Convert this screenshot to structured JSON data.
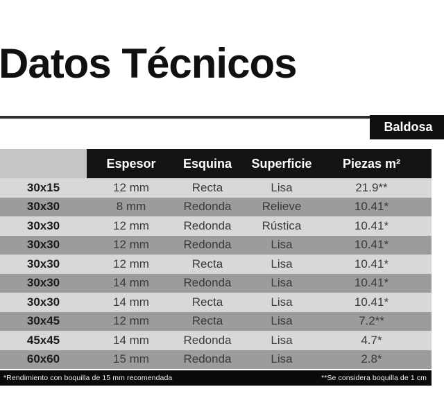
{
  "page": {
    "title": "Datos Técnicos",
    "category_badge": "Baldosa"
  },
  "table": {
    "columns": [
      "Espesor",
      "Esquina",
      "Superficie",
      "Piezas m²"
    ],
    "rows": [
      {
        "size": "30x15",
        "espesor": "12 mm",
        "esquina": "Recta",
        "superficie": "Lisa",
        "piezas": "21.9**"
      },
      {
        "size": "30x30",
        "espesor": "8 mm",
        "esquina": "Redonda",
        "superficie": "Relieve",
        "piezas": "10.41*"
      },
      {
        "size": "30x30",
        "espesor": "12 mm",
        "esquina": "Redonda",
        "superficie": "Rústica",
        "piezas": "10.41*"
      },
      {
        "size": "30x30",
        "espesor": "12 mm",
        "esquina": "Redonda",
        "superficie": "Lisa",
        "piezas": "10.41*"
      },
      {
        "size": "30x30",
        "espesor": "12 mm",
        "esquina": "Recta",
        "superficie": "Lisa",
        "piezas": "10.41*"
      },
      {
        "size": "30x30",
        "espesor": "14 mm",
        "esquina": "Redonda",
        "superficie": "Lisa",
        "piezas": "10.41*"
      },
      {
        "size": "30x30",
        "espesor": "14 mm",
        "esquina": "Recta",
        "superficie": "Lisa",
        "piezas": "10.41*"
      },
      {
        "size": "30x45",
        "espesor": "12 mm",
        "esquina": "Recta",
        "superficie": "Lisa",
        "piezas": "7.2**"
      },
      {
        "size": "45x45",
        "espesor": "14 mm",
        "esquina": "Redonda",
        "superficie": "Lisa",
        "piezas": "4.7*"
      },
      {
        "size": "60x60",
        "espesor": "15 mm",
        "esquina": "Redonda",
        "superficie": "Lisa",
        "piezas": "2.8*"
      }
    ]
  },
  "footnotes": {
    "left": "*Rendimiento con boquilla de 15 mm recomendada",
    "right": "**Se considera boquilla de 1 cm"
  },
  "colors": {
    "header_bar": "#141414",
    "badge_bg": "#0f0f0f",
    "footer_bar": "#0a0a0a",
    "row_light": "#d8d8d9",
    "row_dark": "#9c9c9e",
    "corner_gray": "#c5c5c6",
    "rule": "#2e2e2e",
    "title_text": "#101010"
  }
}
